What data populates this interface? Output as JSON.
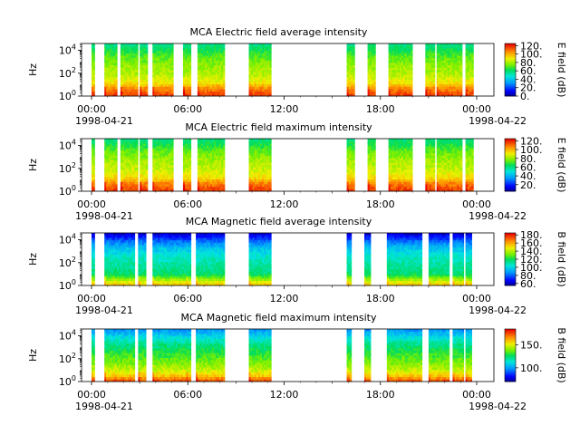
{
  "chart_data": [
    {
      "type": "heatmap",
      "title": "MCA  Electric field average intensity",
      "ylabel": "Hz",
      "y_scale": "log",
      "ylim": [
        1,
        40000
      ],
      "y_ticks": [
        {
          "value": 1,
          "base": "10",
          "exp": "0"
        },
        {
          "value": 100,
          "base": "10",
          "exp": "2"
        },
        {
          "value": 10000,
          "base": "10",
          "exp": "4"
        }
      ],
      "x_tick_labels": [
        "00:00",
        "06:00",
        "12:00",
        "18:00",
        "00:00"
      ],
      "x_tick_hours": [
        0,
        6,
        12,
        18,
        24
      ],
      "x_minor_hours": [
        3,
        9,
        15,
        21
      ],
      "date_start": "1998-04-21",
      "date_end": "1998-04-22",
      "colorbar": {
        "label": "E field (dB)",
        "range": [
          0,
          125
        ],
        "ticks": [
          0,
          20,
          40,
          60,
          80,
          100,
          120
        ],
        "tick_labels": [
          "0.",
          "20.",
          "40.",
          "60.",
          "80.",
          "100.",
          "120."
        ]
      },
      "segments": [
        [
          0.0,
          0.2
        ],
        [
          0.8,
          1.6
        ],
        [
          1.8,
          2.9
        ],
        [
          3.0,
          3.5
        ],
        [
          3.8,
          5.1
        ],
        [
          5.7,
          6.2
        ],
        [
          6.6,
          8.3
        ],
        [
          9.8,
          11.2
        ],
        [
          15.9,
          16.4
        ],
        [
          17.2,
          17.7
        ],
        [
          18.5,
          20.0
        ],
        [
          20.8,
          21.4
        ],
        [
          21.5,
          23.1
        ],
        [
          23.3,
          23.8
        ]
      ],
      "spectrum_stops": [
        {
          "f": 1,
          "db": 118
        },
        {
          "f": 4,
          "db": 108
        },
        {
          "f": 15,
          "db": 92
        },
        {
          "f": 80,
          "db": 82
        },
        {
          "f": 500,
          "db": 78
        },
        {
          "f": 2500,
          "db": 72
        },
        {
          "f": 10000,
          "db": 64
        },
        {
          "f": 30000,
          "db": 58
        }
      ],
      "gap_after_db": 28,
      "colormap": "rainbow"
    },
    {
      "type": "heatmap",
      "title": "MCA  Electric field maximum intensity",
      "ylabel": "Hz",
      "y_scale": "log",
      "ylim": [
        1,
        40000
      ],
      "y_ticks": [
        {
          "value": 1,
          "base": "10",
          "exp": "0"
        },
        {
          "value": 100,
          "base": "10",
          "exp": "2"
        },
        {
          "value": 10000,
          "base": "10",
          "exp": "4"
        }
      ],
      "x_tick_labels": [
        "00:00",
        "06:00",
        "12:00",
        "18:00",
        "00:00"
      ],
      "x_tick_hours": [
        0,
        6,
        12,
        18,
        24
      ],
      "x_minor_hours": [
        3,
        9,
        15,
        21
      ],
      "date_start": "1998-04-21",
      "date_end": "1998-04-22",
      "colorbar": {
        "label": "E field (dB)",
        "range": [
          5,
          125
        ],
        "ticks": [
          20,
          40,
          60,
          80,
          100,
          120
        ],
        "tick_labels": [
          "20.",
          "40.",
          "60.",
          "80.",
          "100.",
          "120."
        ]
      },
      "segments": [
        [
          0.0,
          0.2
        ],
        [
          0.8,
          1.6
        ],
        [
          1.8,
          2.9
        ],
        [
          3.0,
          3.5
        ],
        [
          3.8,
          5.1
        ],
        [
          5.7,
          6.2
        ],
        [
          6.6,
          8.3
        ],
        [
          9.8,
          11.2
        ],
        [
          15.9,
          16.4
        ],
        [
          17.2,
          17.7
        ],
        [
          18.5,
          20.0
        ],
        [
          20.8,
          21.4
        ],
        [
          21.5,
          23.1
        ],
        [
          23.3,
          23.8
        ]
      ],
      "spectrum_stops": [
        {
          "f": 1,
          "db": 118
        },
        {
          "f": 4,
          "db": 110
        },
        {
          "f": 15,
          "db": 95
        },
        {
          "f": 80,
          "db": 86
        },
        {
          "f": 500,
          "db": 82
        },
        {
          "f": 2500,
          "db": 76
        },
        {
          "f": 10000,
          "db": 68
        },
        {
          "f": 30000,
          "db": 62
        }
      ],
      "gap_after_db": 30,
      "colormap": "rainbow"
    },
    {
      "type": "heatmap",
      "title": "MCA  Magnetic field average intensity",
      "ylabel": "Hz",
      "y_scale": "log",
      "ylim": [
        1,
        40000
      ],
      "y_ticks": [
        {
          "value": 1,
          "base": "10",
          "exp": "0"
        },
        {
          "value": 100,
          "base": "10",
          "exp": "2"
        },
        {
          "value": 10000,
          "base": "10",
          "exp": "4"
        }
      ],
      "x_tick_labels": [
        "00:00",
        "06:00",
        "12:00",
        "18:00",
        "00:00"
      ],
      "x_tick_hours": [
        0,
        6,
        12,
        18,
        24
      ],
      "x_minor_hours": [
        3,
        9,
        15,
        21
      ],
      "date_start": "1998-04-21",
      "date_end": "1998-04-22",
      "colorbar": {
        "label": "B field (dB)",
        "range": [
          55,
          185
        ],
        "ticks": [
          60,
          80,
          100,
          120,
          140,
          160,
          180
        ],
        "tick_labels": [
          "60.",
          "80.",
          "100.",
          "120.",
          "140.",
          "160.",
          "180."
        ]
      },
      "segments": [
        [
          0.0,
          0.2
        ],
        [
          0.8,
          2.7
        ],
        [
          2.9,
          3.4
        ],
        [
          3.8,
          5.9
        ],
        [
          5.9,
          6.2
        ],
        [
          6.5,
          8.3
        ],
        [
          9.8,
          11.2
        ],
        [
          15.9,
          16.2
        ],
        [
          17.0,
          17.4
        ],
        [
          18.4,
          20.6
        ],
        [
          21.0,
          22.3
        ],
        [
          22.5,
          23.2
        ],
        [
          23.3,
          23.7
        ]
      ],
      "spectrum_stops": [
        {
          "f": 1,
          "db": 158
        },
        {
          "f": 3,
          "db": 140
        },
        {
          "f": 10,
          "db": 118
        },
        {
          "f": 60,
          "db": 112
        },
        {
          "f": 400,
          "db": 106
        },
        {
          "f": 2000,
          "db": 96
        },
        {
          "f": 8000,
          "db": 82
        },
        {
          "f": 30000,
          "db": 64
        }
      ],
      "gap_after_db": 0,
      "colormap": "rainbow"
    },
    {
      "type": "heatmap",
      "title": "MCA  Magnetic field maximum intensity",
      "ylabel": "Hz",
      "y_scale": "log",
      "ylim": [
        1,
        40000
      ],
      "y_ticks": [
        {
          "value": 1,
          "base": "10",
          "exp": "0"
        },
        {
          "value": 100,
          "base": "10",
          "exp": "2"
        },
        {
          "value": 10000,
          "base": "10",
          "exp": "4"
        }
      ],
      "x_tick_labels": [
        "00:00",
        "06:00",
        "12:00",
        "18:00",
        "00:00"
      ],
      "x_tick_hours": [
        0,
        6,
        12,
        18,
        24
      ],
      "x_minor_hours": [
        3,
        9,
        15,
        21
      ],
      "date_start": "1998-04-21",
      "date_end": "1998-04-22",
      "colorbar": {
        "label": "B field (dB)",
        "range": [
          70,
          185
        ],
        "ticks": [
          100,
          150
        ],
        "tick_labels": [
          "100.",
          "150."
        ]
      },
      "segments": [
        [
          0.0,
          0.2
        ],
        [
          0.8,
          2.7
        ],
        [
          2.9,
          3.4
        ],
        [
          3.8,
          5.9
        ],
        [
          5.9,
          6.2
        ],
        [
          6.5,
          8.3
        ],
        [
          9.8,
          11.2
        ],
        [
          15.9,
          16.2
        ],
        [
          17.0,
          17.4
        ],
        [
          18.4,
          20.6
        ],
        [
          21.0,
          22.3
        ],
        [
          22.5,
          23.2
        ],
        [
          23.3,
          23.7
        ]
      ],
      "spectrum_stops": [
        {
          "f": 1,
          "db": 178
        },
        {
          "f": 3,
          "db": 160
        },
        {
          "f": 10,
          "db": 148
        },
        {
          "f": 60,
          "db": 138
        },
        {
          "f": 400,
          "db": 130
        },
        {
          "f": 2000,
          "db": 122
        },
        {
          "f": 8000,
          "db": 112
        },
        {
          "f": 30000,
          "db": 100
        }
      ],
      "gap_after_db": 0,
      "colormap": "rainbow"
    }
  ]
}
